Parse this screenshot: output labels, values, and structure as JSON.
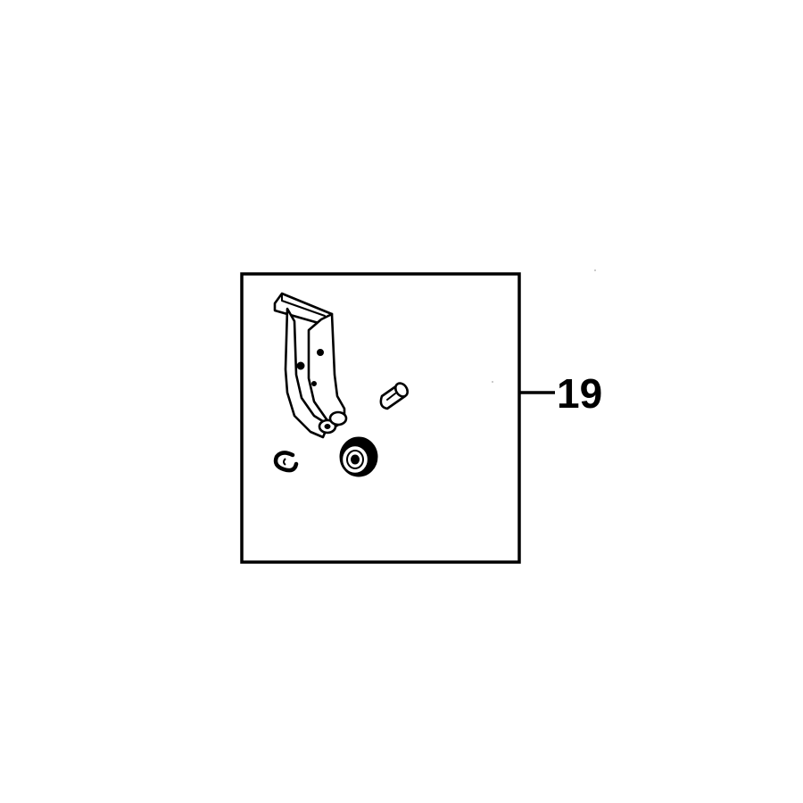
{
  "diagram": {
    "callout": {
      "number": "19"
    },
    "colors": {
      "line": "#000000",
      "background": "#ffffff"
    }
  }
}
